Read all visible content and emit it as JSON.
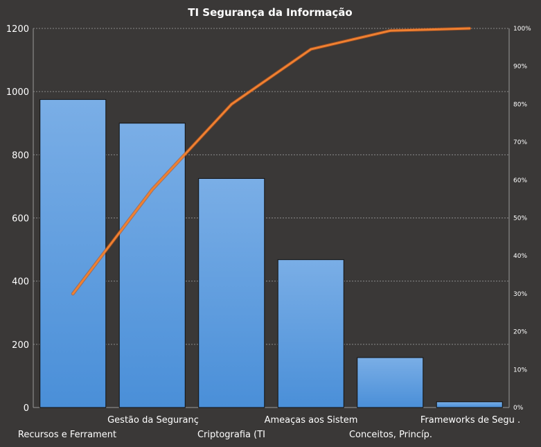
{
  "chart_data": {
    "type": "bar",
    "title": "TI Segurança da Informação",
    "categories": [
      "Recursos e Ferrament",
      "Gestão da Seguranç",
      "Criptografia (TI",
      "Ameaças aos Sistem",
      "Conceitos, Princíp.",
      "Frameworks  de Segu ."
    ],
    "series": [
      {
        "type": "bar",
        "values": [
          975,
          900,
          725,
          468,
          158,
          18
        ]
      },
      {
        "type": "line",
        "axis": "right",
        "values": [
          30,
          57.5,
          80,
          94.5,
          99.4,
          100
        ]
      }
    ],
    "ylim": [
      0,
      1200
    ],
    "yticks": [
      0,
      200,
      400,
      600,
      800,
      1000,
      1200
    ],
    "y2lim": [
      0,
      100
    ],
    "y2ticks": [
      "0%",
      "10%",
      "20%",
      "30%",
      "40%",
      "50%",
      "60%",
      "70%",
      "80%",
      "90%",
      "100%"
    ],
    "grid": true,
    "legend": "none",
    "colors": {
      "background": "#3a3837",
      "bar_top": "#7aaee6",
      "bar_bottom": "#4a8fd8",
      "bar_edge": "#111111",
      "line": "#f08030",
      "grid": "#8a8a8a"
    }
  }
}
